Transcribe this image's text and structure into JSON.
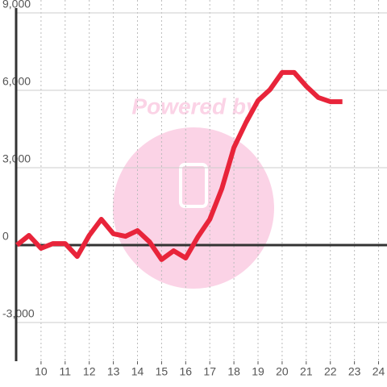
{
  "chart_data": {
    "type": "line",
    "watermark": "Powered by",
    "x": [
      9,
      9.5,
      10,
      10.5,
      11,
      11.5,
      12,
      12.5,
      13,
      13.5,
      14,
      14.5,
      15,
      15.5,
      16,
      16.5,
      17,
      17.5,
      18,
      18.5,
      19,
      19.5,
      20,
      20.5,
      21,
      21.5,
      22,
      22.5
    ],
    "values": [
      0,
      375,
      -125,
      60,
      60,
      -440,
      375,
      1000,
      440,
      340,
      560,
      125,
      -560,
      -220,
      -500,
      310,
      1000,
      2190,
      3780,
      4750,
      5600,
      6030,
      6690,
      6690,
      6160,
      5720,
      5560,
      5560
    ],
    "color": "#e8243a",
    "xlim": [
      9,
      24.35
    ],
    "xticks": [
      10,
      11,
      12,
      13,
      14,
      15,
      16,
      17,
      18,
      19,
      20,
      21,
      22,
      23,
      24
    ],
    "ylim": [
      -4500,
      9000
    ],
    "yticks": [
      {
        "value": -3000,
        "label": "-3,000"
      },
      0,
      {
        "value": 3000,
        "label": "3,000"
      },
      {
        "value": 6000,
        "label": "6,000"
      },
      {
        "value": 9000,
        "label": "9,000"
      }
    ],
    "grid": true
  }
}
